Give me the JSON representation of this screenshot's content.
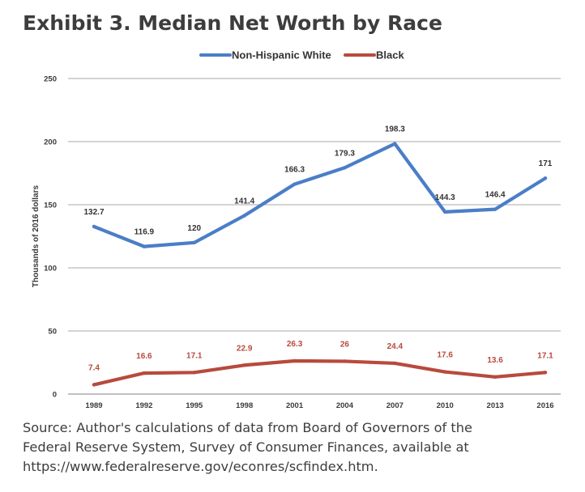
{
  "title": "Exhibit 3. Median Net Worth by Race",
  "source_lines": [
    "Source: Author's calculations of data from Board of Governors of the",
    "Federal Reserve System, Survey of Consumer Finances, available at",
    "https://www.federalreserve.gov/econres/scfindex.htm."
  ],
  "chart_data": {
    "type": "line",
    "ylabel": "Thousands of 2016 dollars",
    "ylim": [
      0,
      250
    ],
    "yticks": [
      0,
      50,
      100,
      150,
      200,
      250
    ],
    "grid": true,
    "legend_position": "top",
    "categories": [
      "1989",
      "1992",
      "1995",
      "1998",
      "2001",
      "2004",
      "2007",
      "2010",
      "2013",
      "2016"
    ],
    "series": [
      {
        "name": "Non-Hispanic White",
        "color": "#4a7ec7",
        "values": [
          132.7,
          116.9,
          120,
          141.4,
          166.3,
          179.3,
          198.3,
          144.3,
          146.4,
          171
        ],
        "labels": [
          "132.7",
          "116.9",
          "120",
          "141.4",
          "166.3",
          "179.3",
          "198.3",
          "144.3",
          "146.4",
          "171"
        ]
      },
      {
        "name": "Black",
        "color": "#b84a3c",
        "values": [
          7.4,
          16.6,
          17.1,
          22.9,
          26.3,
          26,
          24.4,
          17.6,
          13.6,
          17.1
        ],
        "labels": [
          "7.4",
          "16.6",
          "17.1",
          "22.9",
          "26.3",
          "26",
          "24.4",
          "17.6",
          "13.6",
          "17.1"
        ]
      }
    ]
  }
}
